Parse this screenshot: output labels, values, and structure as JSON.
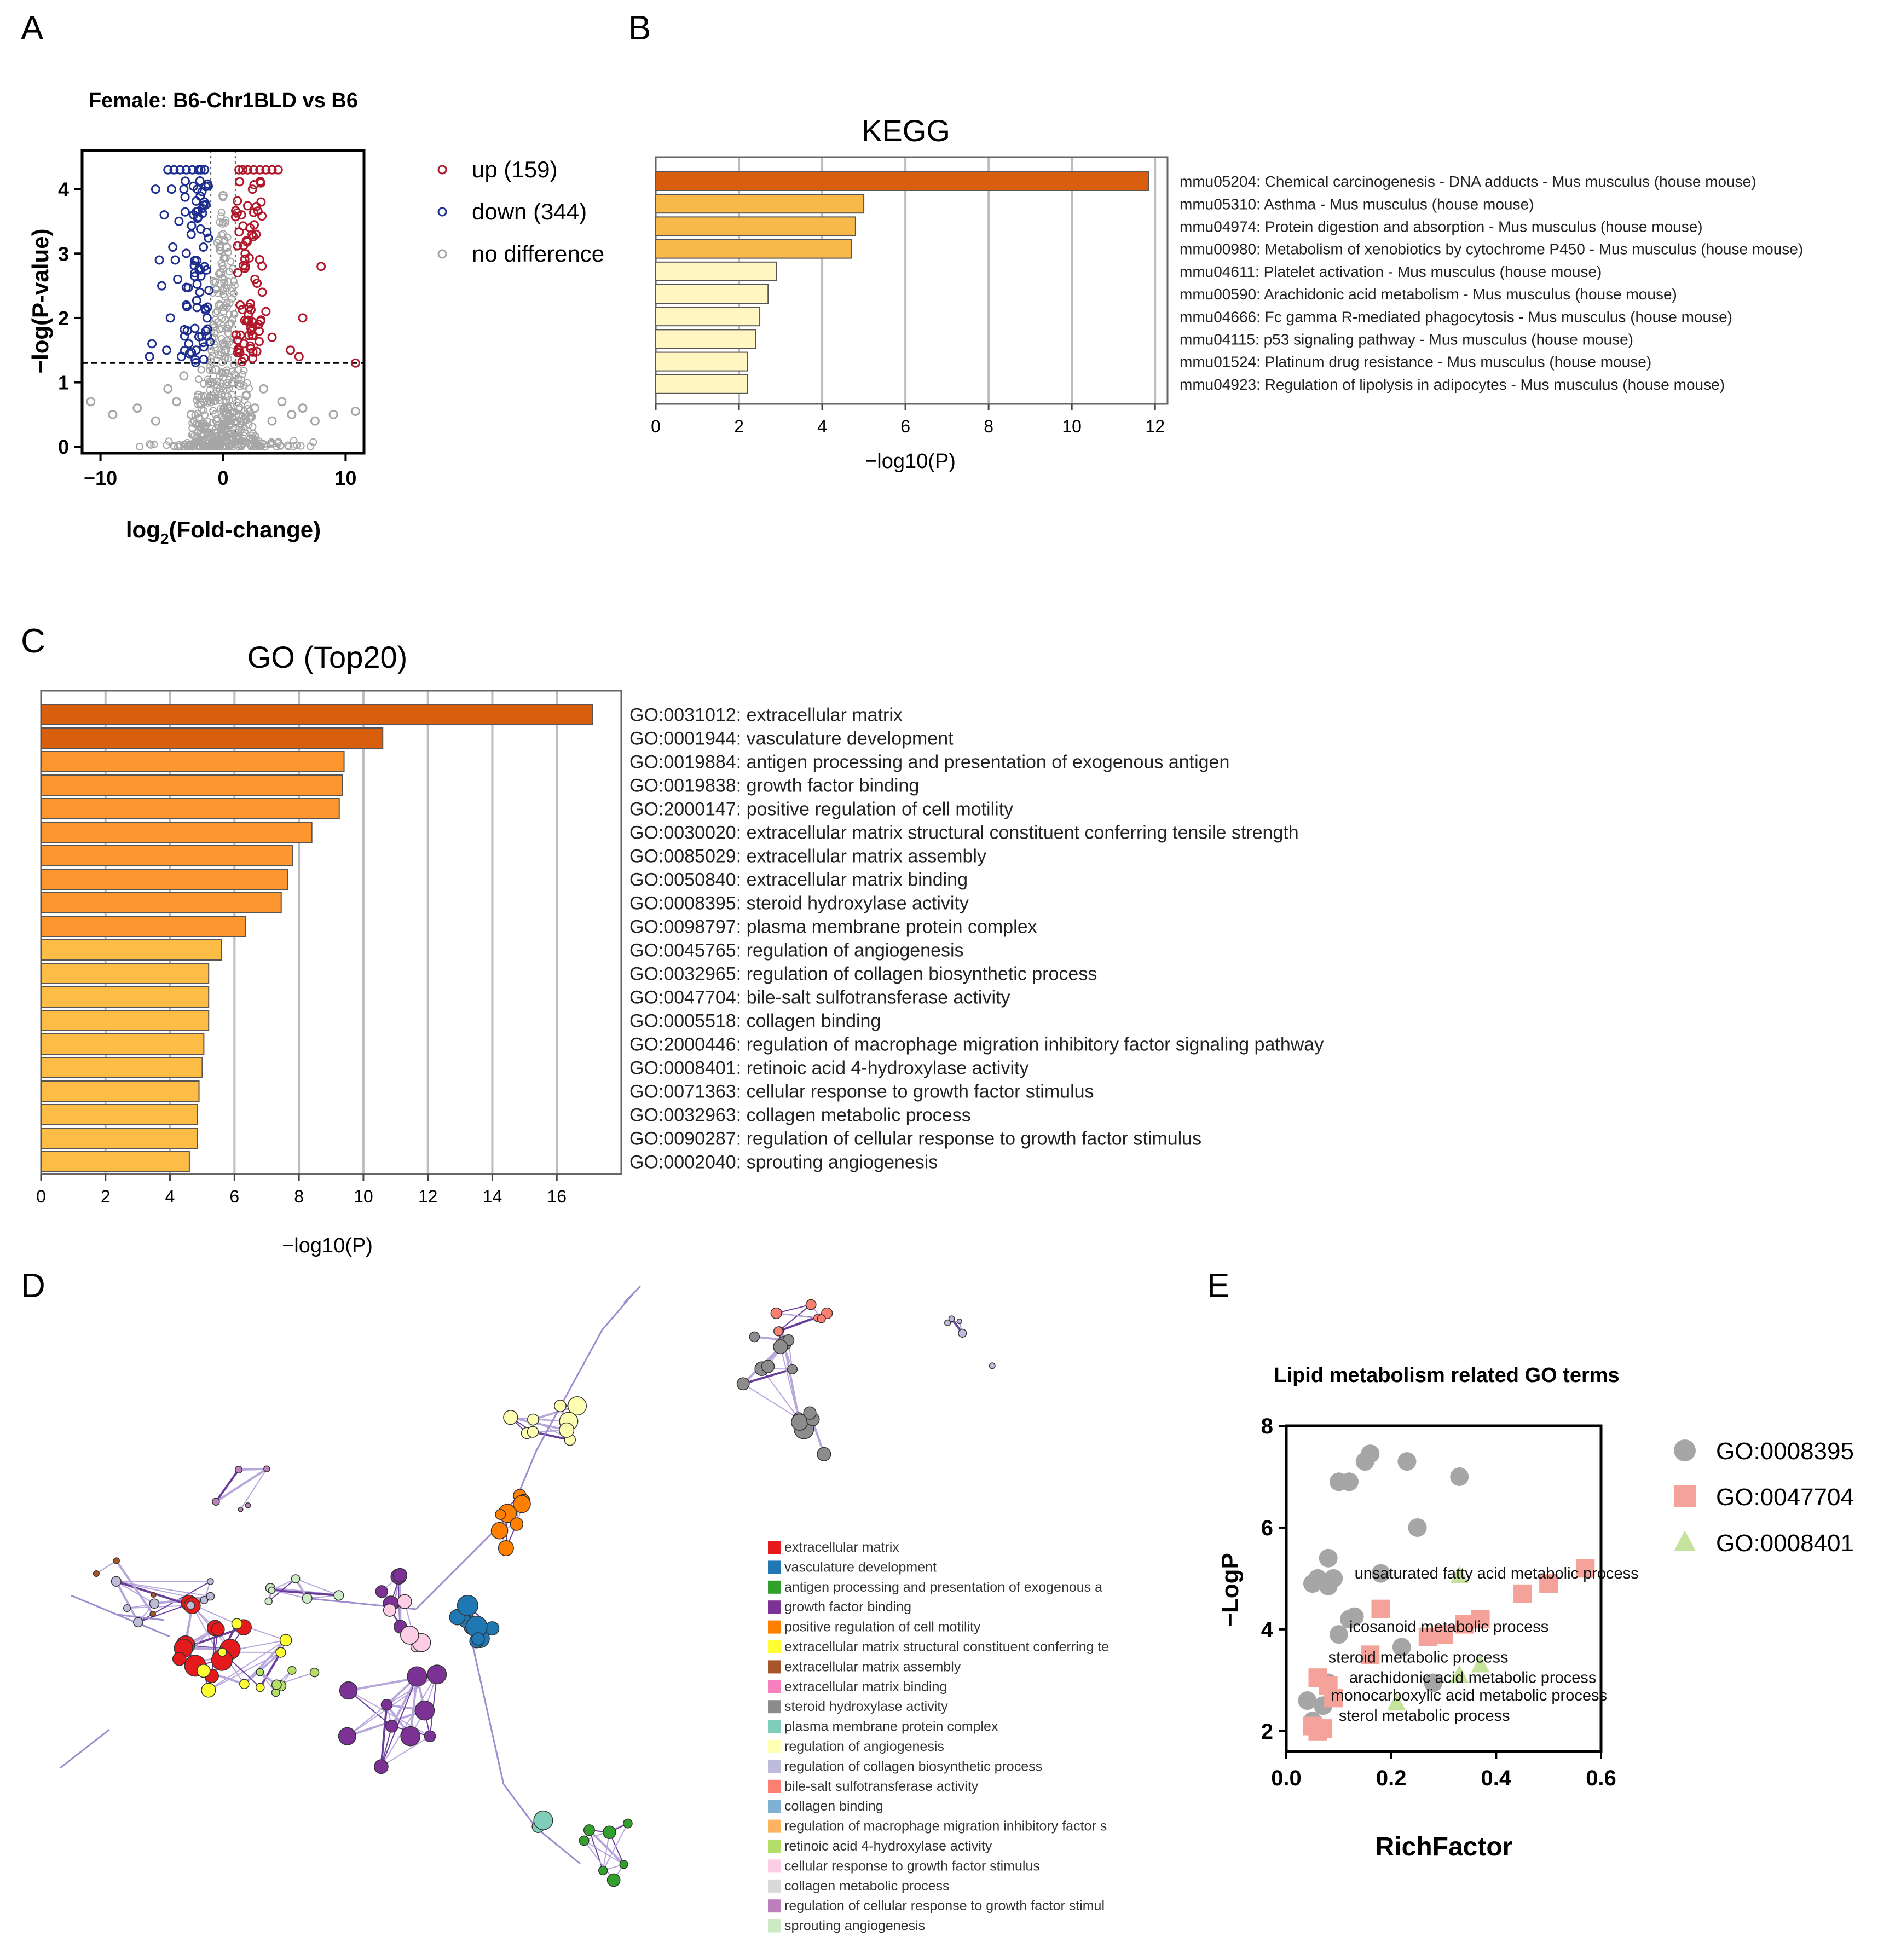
{
  "panel_letters": [
    "A",
    "B",
    "C",
    "D",
    "E"
  ],
  "chart_data": [
    {
      "panel": "A",
      "type": "scatter",
      "title": "Female: B6-Chr1BLD vs B6",
      "xlabel_main": "log",
      "xlabel_sub": "2",
      "xlabel_rest": "(Fold-change)",
      "ylabel": "−log(P-value)",
      "xlim": [
        -11.5,
        11.5
      ],
      "ylim": [
        -0.1,
        4.6
      ],
      "xticks": [
        -10,
        0,
        10
      ],
      "xtick_labels": [
        "−10",
        "0",
        "10"
      ],
      "yticks": [
        0,
        1,
        2,
        3,
        4
      ],
      "threshold_y": 1.3,
      "threshold_x": [
        -1,
        1
      ],
      "legend": [
        {
          "label": "up (159)",
          "color": "#b2182b"
        },
        {
          "label": "down (344)",
          "color": "#1f2f8f"
        },
        {
          "label": "no difference",
          "color": "#a6a6a6"
        }
      ],
      "series": [
        {
          "name": "up",
          "color": "#b2182b",
          "count": 159,
          "points": [
            [
              1.3,
              4.3
            ],
            [
              1.6,
              4.3
            ],
            [
              2.0,
              4.3
            ],
            [
              2.5,
              4.3
            ],
            [
              3.0,
              4.3
            ],
            [
              3.5,
              4.3
            ],
            [
              4.0,
              4.3
            ],
            [
              4.5,
              4.3
            ],
            [
              2.4,
              4.0
            ],
            [
              3.1,
              3.8
            ],
            [
              1.5,
              3.6
            ],
            [
              2.2,
              3.4
            ],
            [
              8.0,
              2.8
            ],
            [
              6.5,
              2.0
            ],
            [
              5.5,
              1.5
            ],
            [
              6.2,
              1.4
            ],
            [
              10.8,
              1.3
            ],
            [
              1.8,
              3.0
            ],
            [
              2.6,
              2.6
            ],
            [
              3.2,
              2.4
            ],
            [
              1.4,
              2.2
            ],
            [
              2.9,
              1.9
            ],
            [
              1.7,
              1.6
            ],
            [
              2.3,
              1.8
            ],
            [
              3.5,
              2.1
            ],
            [
              1.2,
              2.7
            ],
            [
              4.0,
              1.7
            ],
            [
              1.9,
              3.2
            ],
            [
              2.7,
              3.3
            ],
            [
              1.3,
              1.5
            ]
          ]
        },
        {
          "name": "down",
          "color": "#1f2f8f",
          "count": 344,
          "points": [
            [
              -1.5,
              4.3
            ],
            [
              -2.0,
              4.3
            ],
            [
              -2.5,
              4.3
            ],
            [
              -3.0,
              4.3
            ],
            [
              -3.5,
              4.3
            ],
            [
              -4.0,
              4.3
            ],
            [
              -4.5,
              4.3
            ],
            [
              -1.8,
              4.3
            ],
            [
              -5.5,
              4.0
            ],
            [
              -4.2,
              4.0
            ],
            [
              -3.2,
              4.0
            ],
            [
              -2.1,
              4.0
            ],
            [
              -4.8,
              3.6
            ],
            [
              -3.6,
              3.5
            ],
            [
              -2.6,
              3.3
            ],
            [
              -5.0,
              2.5
            ],
            [
              -5.8,
              1.6
            ],
            [
              -4.6,
              1.5
            ],
            [
              -6.0,
              1.4
            ],
            [
              -3.9,
              2.9
            ],
            [
              -2.3,
              2.7
            ],
            [
              -3.0,
              2.2
            ],
            [
              -1.6,
              3.1
            ],
            [
              -4.3,
              2.0
            ],
            [
              -1.4,
              1.8
            ],
            [
              -2.8,
              1.6
            ],
            [
              -3.4,
              1.4
            ],
            [
              -1.9,
              2.4
            ],
            [
              -4.1,
              3.1
            ],
            [
              -2.2,
              1.5
            ],
            [
              -1.3,
              2.0
            ],
            [
              -3.7,
              2.6
            ],
            [
              -5.2,
              2.9
            ],
            [
              -1.7,
              3.7
            ],
            [
              -2.4,
              3.6
            ]
          ]
        },
        {
          "name": "no difference",
          "color": "#a6a6a6",
          "points": [
            [
              -10.8,
              0.7
            ],
            [
              -9.0,
              0.5
            ],
            [
              -7.0,
              0.6
            ],
            [
              -5.5,
              0.4
            ],
            [
              -4.5,
              0.9
            ],
            [
              -3.8,
              0.7
            ],
            [
              -3.2,
              1.1
            ],
            [
              -2.6,
              0.5
            ],
            [
              -2.0,
              0.8
            ],
            [
              -1.5,
              0.3
            ],
            [
              -0.9,
              1.0
            ],
            [
              -0.5,
              0.4
            ],
            [
              0.0,
              0.2
            ],
            [
              0.4,
              0.6
            ],
            [
              0.8,
              1.0
            ],
            [
              1.3,
              0.5
            ],
            [
              1.9,
              0.8
            ],
            [
              2.6,
              0.6
            ],
            [
              3.3,
              0.9
            ],
            [
              4.0,
              0.4
            ],
            [
              4.8,
              0.7
            ],
            [
              5.6,
              0.5
            ],
            [
              6.5,
              0.6
            ],
            [
              7.5,
              0.4
            ],
            [
              9.0,
              0.5
            ],
            [
              10.8,
              0.55
            ],
            [
              0.2,
              1.5
            ],
            [
              -0.3,
              2.2
            ],
            [
              0.3,
              3.1
            ],
            [
              0.0,
              3.9
            ],
            [
              -0.2,
              2.7
            ],
            [
              0.5,
              1.9
            ],
            [
              -0.6,
              1.2
            ],
            [
              0.6,
              0.2
            ],
            [
              -1.1,
              0.1
            ],
            [
              1.1,
              0.15
            ]
          ]
        }
      ]
    },
    {
      "panel": "B",
      "type": "bar",
      "orientation": "horizontal",
      "title": "KEGG",
      "xlabel": "−log10(P)",
      "xlim": [
        0,
        12.3
      ],
      "xticks": [
        0,
        2,
        4,
        6,
        8,
        10,
        12
      ],
      "categories": [
        "mmu05204: Chemical carcinogenesis - DNA adducts - Mus musculus (house mouse)",
        "mmu05310: Asthma - Mus musculus (house mouse)",
        "mmu04974: Protein digestion and absorption - Mus musculus (house mouse)",
        "mmu00980: Metabolism of xenobiotics by cytochrome P450 - Mus musculus (house mouse)",
        "mmu04611: Platelet activation - Mus musculus (house mouse)",
        "mmu00590: Arachidonic acid metabolism - Mus musculus (house mouse)",
        "mmu04666: Fc gamma R-mediated phagocytosis - Mus musculus (house mouse)",
        "mmu04115: p53 signaling pathway - Mus musculus (house mouse)",
        "mmu01524: Platinum drug resistance - Mus musculus (house mouse)",
        "mmu04923: Regulation of lipolysis in adipocytes - Mus musculus (house mouse)"
      ],
      "values": [
        11.85,
        5.0,
        4.8,
        4.7,
        2.9,
        2.7,
        2.5,
        2.4,
        2.2,
        2.2
      ],
      "colors": [
        "#d95f0e",
        "#f9b94a",
        "#f9b94a",
        "#f9b94a",
        "#fff6c2",
        "#fff6c2",
        "#fff6c2",
        "#fff6c2",
        "#fff6c2",
        "#fff6c2"
      ]
    },
    {
      "panel": "C",
      "type": "bar",
      "orientation": "horizontal",
      "title": "GO (Top20)",
      "xlabel": "−log10(P)",
      "xlim": [
        0,
        18
      ],
      "xticks": [
        0,
        2,
        4,
        6,
        8,
        10,
        12,
        14,
        16
      ],
      "categories": [
        "GO:0031012: extracellular matrix",
        "GO:0001944: vasculature development",
        "GO:0019884: antigen processing and presentation of exogenous antigen",
        "GO:0019838: growth factor binding",
        "GO:2000147: positive regulation of cell motility",
        "GO:0030020: extracellular matrix structural constituent conferring tensile strength",
        "GO:0085029: extracellular matrix assembly",
        "GO:0050840: extracellular matrix binding",
        "GO:0008395: steroid hydroxylase activity",
        "GO:0098797: plasma membrane protein complex",
        "GO:0045765: regulation of angiogenesis",
        "GO:0032965: regulation of collagen biosynthetic process",
        "GO:0047704: bile-salt sulfotransferase activity",
        "GO:0005518: collagen binding",
        "GO:2000446: regulation of macrophage migration inhibitory factor signaling pathway",
        "GO:0008401: retinoic acid 4-hydroxylase activity",
        "GO:0071363: cellular response to growth factor stimulus",
        "GO:0032963: collagen metabolic process",
        "GO:0090287: regulation of cellular response to growth factor stimulus",
        "GO:0002040: sprouting angiogenesis"
      ],
      "values": [
        17.1,
        10.6,
        9.4,
        9.35,
        9.25,
        8.4,
        7.8,
        7.65,
        7.45,
        6.35,
        5.6,
        5.2,
        5.2,
        5.2,
        5.05,
        5.0,
        4.9,
        4.85,
        4.85,
        4.6
      ],
      "colors": [
        "#d95f0e",
        "#d95f0e",
        "#fd962f",
        "#fd962f",
        "#fd962f",
        "#fd962f",
        "#fd962f",
        "#fd962f",
        "#fd962f",
        "#fd962f",
        "#fcbc46",
        "#fcbc46",
        "#fcbc46",
        "#fcbc46",
        "#fcbc46",
        "#fcbc46",
        "#fcbc46",
        "#fcbc46",
        "#fcbc46",
        "#fcbc46"
      ]
    },
    {
      "panel": "E",
      "type": "scatter",
      "title": "Lipid metabolism related GO terms",
      "xlabel": "RichFactor",
      "ylabel": "−LogP",
      "xlim": [
        0.0,
        0.6
      ],
      "ylim": [
        1.6,
        8.0
      ],
      "xticks": [
        0.0,
        0.2,
        0.4,
        0.6
      ],
      "xtick_labels": [
        "0.0",
        "0.2",
        "0.4",
        "0.6"
      ],
      "yticks": [
        2,
        4,
        6,
        8
      ],
      "legend": [
        {
          "label": "GO:0008395",
          "color": "#a6a6a6",
          "shape": "circle"
        },
        {
          "label": "GO:0047704",
          "color": "#f4a29a",
          "shape": "square"
        },
        {
          "label": "GO:0008401",
          "color": "#c5e39c",
          "shape": "triangle"
        }
      ],
      "series": [
        {
          "name": "GO:0008395",
          "shape": "circle",
          "color": "#a6a6a6",
          "points": [
            [
              0.16,
              7.45
            ],
            [
              0.15,
              7.3
            ],
            [
              0.23,
              7.3
            ],
            [
              0.1,
              6.9
            ],
            [
              0.12,
              6.9
            ],
            [
              0.33,
              7.0
            ],
            [
              0.25,
              6.0
            ],
            [
              0.08,
              5.4
            ],
            [
              0.05,
              4.9
            ],
            [
              0.06,
              5.0
            ],
            [
              0.08,
              4.85
            ],
            [
              0.09,
              5.0
            ],
            [
              0.18,
              5.1
            ],
            [
              0.12,
              4.2
            ],
            [
              0.1,
              3.9
            ],
            [
              0.13,
              4.25
            ],
            [
              0.22,
              3.65
            ],
            [
              0.28,
              2.95
            ],
            [
              0.08,
              2.95
            ],
            [
              0.07,
              2.5
            ],
            [
              0.05,
              2.2
            ],
            [
              0.04,
              2.6
            ]
          ]
        },
        {
          "name": "GO:0047704",
          "shape": "square",
          "color": "#f4a29a",
          "points": [
            [
              0.57,
              5.2
            ],
            [
              0.5,
              4.9
            ],
            [
              0.45,
              4.7
            ],
            [
              0.37,
              4.2
            ],
            [
              0.34,
              4.1
            ],
            [
              0.3,
              3.9
            ],
            [
              0.27,
              3.85
            ],
            [
              0.18,
              4.4
            ],
            [
              0.16,
              3.5
            ],
            [
              0.06,
              3.05
            ],
            [
              0.08,
              2.9
            ],
            [
              0.09,
              2.65
            ],
            [
              0.05,
              2.1
            ],
            [
              0.07,
              2.05
            ],
            [
              0.06,
              2.0
            ]
          ]
        },
        {
          "name": "GO:0008401",
          "shape": "triangle",
          "color": "#c5e39c",
          "points": [
            [
              0.33,
              5.05
            ],
            [
              0.37,
              3.3
            ],
            [
              0.33,
              3.1
            ],
            [
              0.21,
              2.55
            ]
          ]
        }
      ],
      "annotations": [
        {
          "text": "unsaturated fatty acid metabolic process",
          "x": 0.13,
          "y": 5.0
        },
        {
          "text": "icosanoid metabolic process",
          "x": 0.12,
          "y": 3.95
        },
        {
          "text": "steroid metabolic process",
          "x": 0.08,
          "y": 3.35
        },
        {
          "text": "arachidonic acid metabolic process",
          "x": 0.12,
          "y": 2.95
        },
        {
          "text": "monocarboxylic acid metabolic process",
          "x": 0.085,
          "y": 2.6
        },
        {
          "text": "sterol metabolic process",
          "x": 0.1,
          "y": 2.2
        }
      ]
    }
  ],
  "network": {
    "panel": "D",
    "legend": [
      {
        "label": "extracellular matrix",
        "color": "#e41a1c"
      },
      {
        "label": "vasculature development",
        "color": "#1f78b4"
      },
      {
        "label": "antigen processing and presentation of exogenous a",
        "color": "#33a02c"
      },
      {
        "label": "growth factor binding",
        "color": "#7b3294"
      },
      {
        "label": "positive regulation of cell motility",
        "color": "#ff7f00"
      },
      {
        "label": "extracellular matrix structural constituent conferring te",
        "color": "#ffff33"
      },
      {
        "label": "extracellular matrix assembly",
        "color": "#a65628"
      },
      {
        "label": "extracellular matrix binding",
        "color": "#f781bf"
      },
      {
        "label": "steroid hydroxylase activity",
        "color": "#8c8c8c"
      },
      {
        "label": "plasma membrane protein complex",
        "color": "#7fcdbb"
      },
      {
        "label": "regulation of angiogenesis",
        "color": "#ffffb3"
      },
      {
        "label": "regulation of collagen biosynthetic process",
        "color": "#bebada"
      },
      {
        "label": "bile-salt sulfotransferase activity",
        "color": "#fb8072"
      },
      {
        "label": "collagen binding",
        "color": "#80b1d3"
      },
      {
        "label": "regulation of macrophage migration inhibitory factor s",
        "color": "#fdb462"
      },
      {
        "label": "retinoic acid 4-hydroxylase activity",
        "color": "#b3de69"
      },
      {
        "label": "cellular response to growth factor stimulus",
        "color": "#fccde5"
      },
      {
        "label": "collagen metabolic process",
        "color": "#d9d9d9"
      },
      {
        "label": "regulation of cellular response to growth factor stimul",
        "color": "#bc80bd"
      },
      {
        "label": "sprouting angiogenesis",
        "color": "#ccebc5"
      }
    ]
  }
}
